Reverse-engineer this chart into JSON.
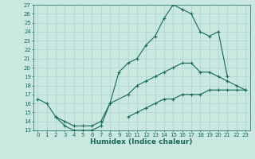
{
  "title": "",
  "xlabel": "Humidex (Indice chaleur)",
  "bg_color": "#c8e8e0",
  "grid_color": "#a8ccc8",
  "line_color": "#1a6858",
  "xlim": [
    -0.5,
    23.5
  ],
  "ylim": [
    13,
    27
  ],
  "xticks": [
    0,
    1,
    2,
    3,
    4,
    5,
    6,
    7,
    8,
    9,
    10,
    11,
    12,
    13,
    14,
    15,
    16,
    17,
    18,
    19,
    20,
    21,
    22,
    23
  ],
  "yticks": [
    13,
    14,
    15,
    16,
    17,
    18,
    19,
    20,
    21,
    22,
    23,
    24,
    25,
    26,
    27
  ],
  "series": [
    {
      "x": [
        0,
        1,
        2,
        3,
        4,
        5,
        6,
        7,
        8,
        9,
        10,
        11,
        12,
        13,
        14,
        15,
        16,
        17,
        18,
        19,
        20,
        21
      ],
      "y": [
        16.5,
        16.0,
        14.5,
        13.5,
        13.0,
        13.0,
        13.0,
        13.5,
        16.0,
        19.5,
        20.5,
        21.0,
        22.5,
        23.5,
        25.5,
        27.0,
        26.5,
        26.0,
        24.0,
        23.5,
        24.0,
        19.0
      ]
    },
    {
      "x": [
        2,
        3,
        4,
        5,
        6,
        7,
        8,
        10,
        11,
        12,
        13,
        14,
        15,
        16,
        17,
        18,
        19,
        20,
        21,
        22,
        23
      ],
      "y": [
        14.5,
        14.0,
        13.5,
        13.5,
        13.5,
        14.0,
        16.0,
        17.0,
        18.0,
        18.5,
        19.0,
        19.5,
        20.0,
        20.5,
        20.5,
        19.5,
        19.5,
        19.0,
        18.5,
        18.0,
        17.5
      ]
    },
    {
      "x": [
        10,
        11,
        12,
        13,
        14,
        15,
        16,
        17,
        18,
        19,
        20,
        21,
        22,
        23
      ],
      "y": [
        14.5,
        15.0,
        15.5,
        16.0,
        16.5,
        16.5,
        17.0,
        17.0,
        17.0,
        17.5,
        17.5,
        17.5,
        17.5,
        17.5
      ]
    }
  ],
  "tick_fontsize": 5.0,
  "xlabel_fontsize": 6.5,
  "marker_size": 3.0,
  "linewidth": 0.8
}
